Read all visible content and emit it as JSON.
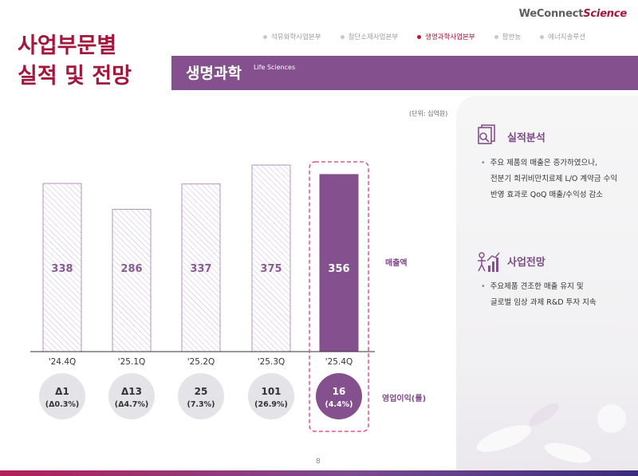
{
  "header": {
    "title_line1": "사업부문별",
    "title_line2": "실적 및 전망",
    "brand_prefix": "WeConnect",
    "brand_suffix": "Science",
    "nav": [
      {
        "label": "석유화학사업본부",
        "active": false
      },
      {
        "label": "첨단소재사업본부",
        "active": false
      },
      {
        "label": "생명과학사업본부",
        "active": true
      },
      {
        "label": "팜한농",
        "active": false
      },
      {
        "label": "에너지솔루션",
        "active": false
      }
    ],
    "section_title": "생명과학",
    "section_subtitle": "Life Sciences"
  },
  "unit": "(단위: 십억원)",
  "side_labels": {
    "revenue": "매출액",
    "op_profit": "영업이익(률)"
  },
  "chart_data": {
    "type": "bar",
    "categories": [
      "'24.4Q",
      "'25.1Q",
      "'25.2Q",
      "'25.3Q",
      "'25.4Q"
    ],
    "series": [
      {
        "name": "매출액",
        "values": [
          338,
          286,
          337,
          375,
          356
        ]
      }
    ],
    "op_profit": [
      {
        "value": "Δ1",
        "margin": "(Δ0.3%)"
      },
      {
        "value": "Δ13",
        "margin": "(Δ4.7%)"
      },
      {
        "value": "25",
        "margin": "(7.3%)"
      },
      {
        "value": "101",
        "margin": "(26.9%)"
      },
      {
        "value": "16",
        "margin": "(4.4%)"
      }
    ],
    "highlight_index": 4,
    "colors": {
      "bar_outline": "#b392bd",
      "bar_highlight": "#85508e",
      "circle_gray": "#e3e3e8",
      "circle_highlight": "#85508e",
      "dash_box": "#e05591",
      "value_text": "#8a5a94"
    }
  },
  "panel": {
    "analysis": {
      "heading": "실적분석",
      "lines": [
        "주요 제품의 매출은 증가하였으나,",
        "전분기 희귀비만치료제 L/O 계약금 수익",
        "반영 효과로 QoQ 매출/수익성 감소"
      ]
    },
    "outlook": {
      "heading": "사업전망",
      "lines": [
        "주요제품 견조한 매출 유지 및",
        "글로벌 임상 과제 R&D 투자 지속"
      ]
    }
  },
  "footer": {
    "page_number": "8"
  }
}
